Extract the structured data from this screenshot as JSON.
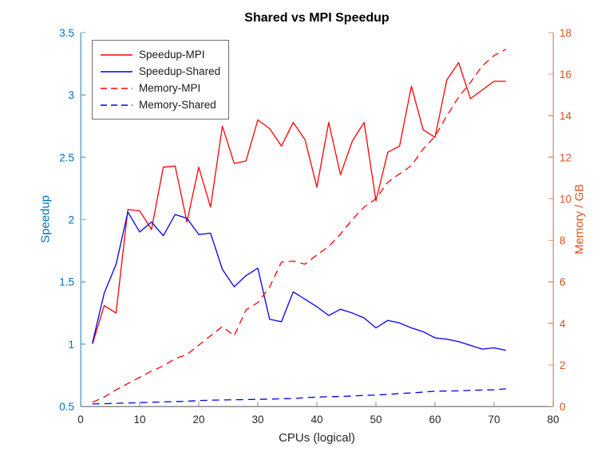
{
  "chart_data": {
    "type": "line",
    "title": "Shared vs MPI Speedup",
    "xlabel": "CPUs (logical)",
    "ylabel_left": "Speedup",
    "ylabel_right": "Memory / GB",
    "grid": false,
    "legend_position": "top-left",
    "x_range": [
      0,
      80
    ],
    "x_ticks": [
      0,
      10,
      20,
      30,
      40,
      50,
      60,
      70,
      80
    ],
    "y_left": {
      "min": 0.5,
      "max": 3.5,
      "ticks": [
        0.5,
        1,
        1.5,
        2,
        2.5,
        3,
        3.5
      ]
    },
    "y_right": {
      "min": 0,
      "max": 18,
      "ticks": [
        0,
        2,
        4,
        6,
        8,
        10,
        12,
        14,
        16,
        18
      ]
    },
    "x": [
      2,
      4,
      6,
      8,
      10,
      12,
      14,
      16,
      18,
      20,
      22,
      24,
      26,
      28,
      30,
      32,
      34,
      36,
      38,
      40,
      42,
      44,
      46,
      48,
      50,
      52,
      54,
      56,
      58,
      60,
      62,
      64,
      66,
      68,
      70,
      72
    ],
    "series": [
      {
        "name": "Speedup-MPI",
        "axis": "left",
        "style": "solid",
        "color": "#ff0000",
        "values": [
          1.0,
          1.31,
          1.25,
          2.08,
          2.07,
          1.92,
          2.42,
          2.43,
          1.98,
          2.42,
          2.1,
          2.75,
          2.45,
          2.47,
          2.8,
          2.73,
          2.59,
          2.78,
          2.64,
          2.26,
          2.78,
          2.36,
          2.63,
          2.78,
          2.15,
          2.54,
          2.59,
          3.07,
          2.72,
          2.66,
          3.12,
          3.26,
          2.97,
          3.04,
          3.11,
          3.11
        ]
      },
      {
        "name": "Speedup-Shared",
        "axis": "left",
        "style": "solid",
        "color": "#0000ee",
        "values": [
          1.01,
          1.41,
          1.64,
          2.06,
          1.9,
          1.98,
          1.87,
          2.04,
          2.01,
          1.88,
          1.89,
          1.6,
          1.46,
          1.55,
          1.61,
          1.2,
          1.18,
          1.42,
          1.36,
          1.3,
          1.23,
          1.28,
          1.25,
          1.21,
          1.13,
          1.19,
          1.17,
          1.13,
          1.1,
          1.05,
          1.04,
          1.02,
          0.99,
          0.96,
          0.97,
          0.95
        ]
      },
      {
        "name": "Memory-MPI",
        "axis": "right",
        "style": "dashed",
        "color": "#ff0000",
        "values": [
          0.2,
          0.45,
          0.8,
          1.1,
          1.4,
          1.7,
          1.95,
          2.3,
          2.5,
          2.95,
          3.4,
          3.85,
          3.4,
          4.65,
          5.0,
          5.75,
          6.95,
          7.0,
          6.85,
          7.3,
          7.7,
          8.3,
          9.0,
          9.6,
          10.0,
          10.8,
          11.2,
          11.6,
          12.4,
          13.0,
          14.0,
          14.9,
          15.6,
          16.4,
          16.9,
          17.2
        ]
      },
      {
        "name": "Memory-Shared",
        "axis": "right",
        "style": "dashed",
        "color": "#0000ee",
        "values": [
          0.12,
          0.13,
          0.15,
          0.16,
          0.18,
          0.2,
          0.22,
          0.23,
          0.25,
          0.28,
          0.3,
          0.31,
          0.32,
          0.33,
          0.34,
          0.35,
          0.37,
          0.38,
          0.42,
          0.45,
          0.47,
          0.48,
          0.5,
          0.53,
          0.55,
          0.58,
          0.62,
          0.65,
          0.69,
          0.73,
          0.74,
          0.75,
          0.77,
          0.79,
          0.8,
          0.85
        ]
      }
    ],
    "legend_entries": [
      "Speedup-MPI",
      "Speedup-Shared",
      "Memory-MPI",
      "Memory-Shared"
    ]
  },
  "colors": {
    "left_axis": "#0072BD",
    "left_axis_line": "#66aad3",
    "right_axis": "#D95319",
    "right_axis_line": "#eb9a6e",
    "x_axis_line": "#8c8c8c",
    "x_axis_text": "#262626",
    "legend_border": "#707070"
  }
}
